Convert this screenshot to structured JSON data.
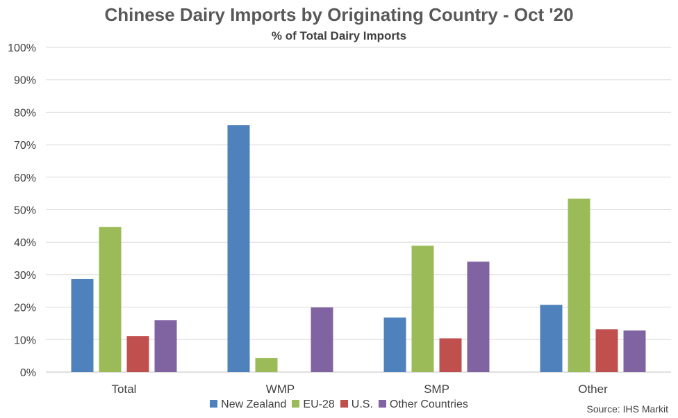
{
  "chart_data": {
    "type": "bar",
    "title": "Chinese Dairy Imports by Originating Country - Oct '20",
    "subtitle": "% of Total Dairy Imports",
    "categories": [
      "Total",
      "WMP",
      "SMP",
      "Other"
    ],
    "series": [
      {
        "name": "New Zealand",
        "color": "#4F81BD",
        "values": [
          28.7,
          76.0,
          16.8,
          20.7
        ]
      },
      {
        "name": "EU-28",
        "color": "#9BBB59",
        "values": [
          44.7,
          4.3,
          38.9,
          53.4
        ]
      },
      {
        "name": "U.S.",
        "color": "#C0504D",
        "values": [
          11.1,
          0.0,
          10.4,
          13.2
        ]
      },
      {
        "name": "Other Countries",
        "color": "#8064A2",
        "values": [
          16.0,
          19.9,
          34.0,
          12.8
        ]
      }
    ],
    "ylim": [
      0,
      100
    ],
    "yticks": [
      "0%",
      "10%",
      "20%",
      "30%",
      "40%",
      "50%",
      "60%",
      "70%",
      "80%",
      "90%",
      "100%"
    ],
    "grid": true,
    "legend_position": "bottom"
  },
  "source": "Source: IHS Markit"
}
